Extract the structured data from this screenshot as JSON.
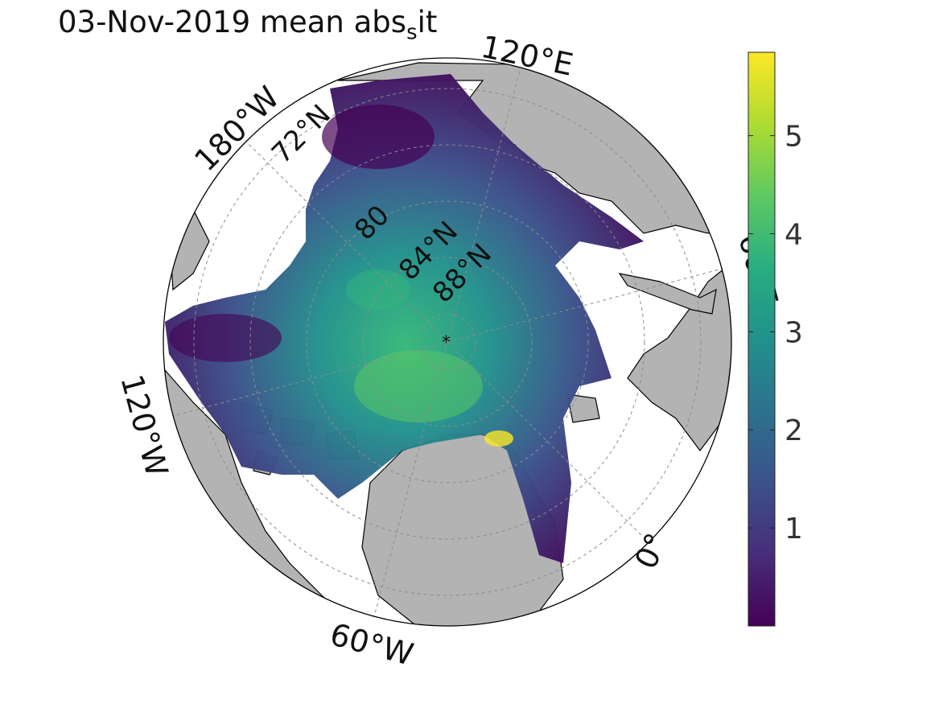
{
  "title": {
    "main": "03-Nov-2019 mean abs",
    "sub": "s",
    "tail": "it"
  },
  "map": {
    "projection": "polar stereographic (north pole)",
    "pole_marker": "*",
    "longitude_labels": [
      "120°E",
      "180°W",
      "120°W",
      "60°W",
      "0°",
      "60°E"
    ],
    "latitude_labels": [
      "72°N",
      "80",
      "84°N",
      "88°N"
    ],
    "colors": {
      "land": "#b3b3b3",
      "open_water": "#ffffff",
      "grid": "#8c8c8c",
      "boundary": "#000000"
    }
  },
  "colorbar": {
    "colormap": "viridis",
    "min": 0,
    "max": 5.85,
    "ticks": [
      "1",
      "2",
      "3",
      "4",
      "5"
    ],
    "tick_values": [
      1,
      2,
      3,
      4,
      5
    ],
    "colors": [
      "#440154",
      "#472d7b",
      "#3b528b",
      "#2c728e",
      "#21918c",
      "#28ae80",
      "#5ec962",
      "#addc30",
      "#fde725"
    ]
  }
}
